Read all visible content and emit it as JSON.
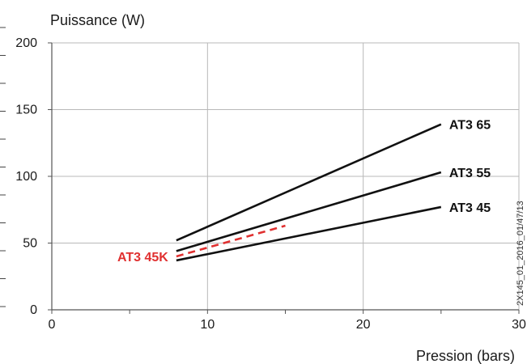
{
  "chart_data": {
    "type": "line",
    "title": "",
    "ylabel": "Puissance (W)",
    "xlabel": "Pression (bars)",
    "xlim": [
      0,
      30
    ],
    "ylim": [
      0,
      200
    ],
    "x_ticks": [
      0,
      10,
      20,
      30
    ],
    "y_ticks": [
      0,
      50,
      100,
      150,
      200
    ],
    "grid": true,
    "series": [
      {
        "name": "AT3 65",
        "x": [
          8,
          25
        ],
        "y": [
          52,
          139
        ],
        "color": "#111111",
        "style": "solid"
      },
      {
        "name": "AT3 55",
        "x": [
          8,
          25
        ],
        "y": [
          44,
          103
        ],
        "color": "#111111",
        "style": "solid"
      },
      {
        "name": "AT3 45",
        "x": [
          8,
          25
        ],
        "y": [
          37,
          77
        ],
        "color": "#111111",
        "style": "solid"
      },
      {
        "name": "AT3 45K",
        "x": [
          8,
          15
        ],
        "y": [
          40,
          63
        ],
        "color": "#e03030",
        "style": "dashed"
      }
    ]
  },
  "side_code": "2X145_01_2016_01/47/13"
}
